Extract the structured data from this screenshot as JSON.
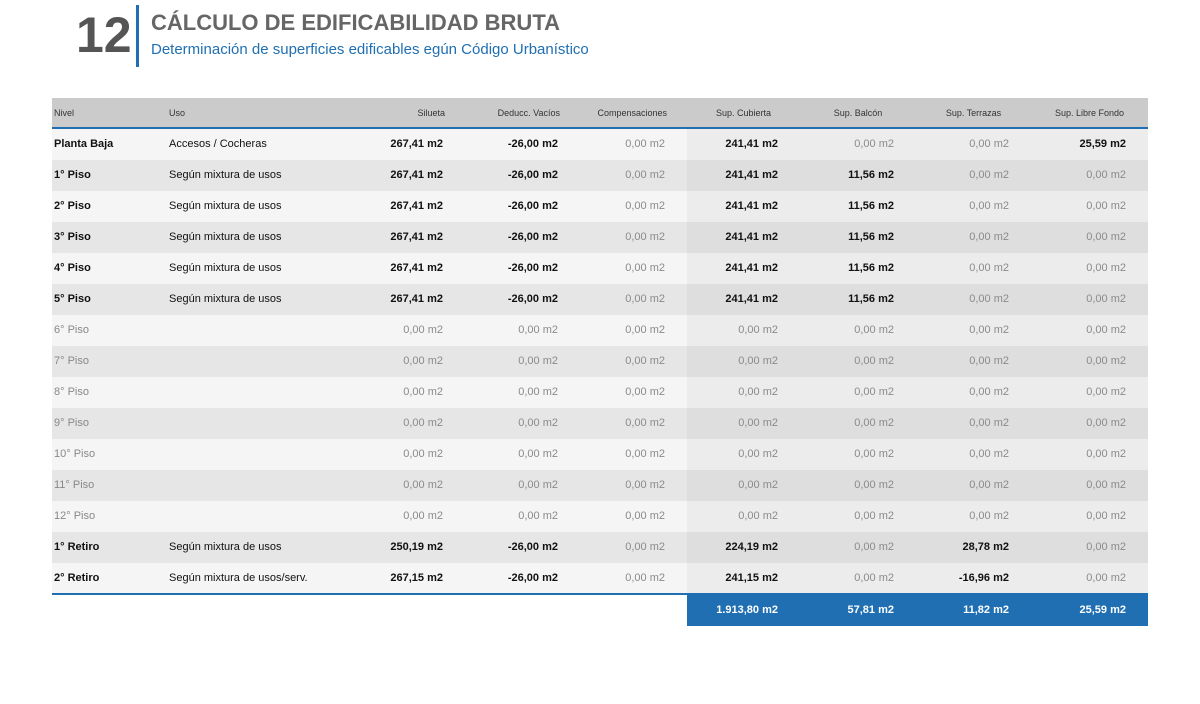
{
  "header": {
    "number": "12",
    "title": "CÁLCULO DE EDIFICABILIDAD BRUTA",
    "subtitle": "Determinación de superficies edificables egún Código Urbanístico"
  },
  "table": {
    "columns": [
      "Nivel",
      "Uso",
      "Silueta",
      "Deducc. Vacíos",
      "Compensaciones",
      "Sup. Cubierta",
      "Sup. Balcón",
      "Sup. Terrazas",
      "Sup. Libre Fondo"
    ],
    "rows": [
      [
        "Planta Baja",
        "Accesos / Cocheras",
        "267,41 m2",
        "-26,00 m2",
        "0,00 m2",
        "241,41 m2",
        "0,00 m2",
        "0,00 m2",
        "25,59 m2"
      ],
      [
        "1° Piso",
        "Según mixtura de usos",
        "267,41 m2",
        "-26,00 m2",
        "0,00 m2",
        "241,41 m2",
        "11,56 m2",
        "0,00 m2",
        "0,00 m2"
      ],
      [
        "2° Piso",
        "Según mixtura de usos",
        "267,41 m2",
        "-26,00 m2",
        "0,00 m2",
        "241,41 m2",
        "11,56 m2",
        "0,00 m2",
        "0,00 m2"
      ],
      [
        "3° Piso",
        "Según mixtura de usos",
        "267,41 m2",
        "-26,00 m2",
        "0,00 m2",
        "241,41 m2",
        "11,56 m2",
        "0,00 m2",
        "0,00 m2"
      ],
      [
        "4° Piso",
        "Según mixtura de usos",
        "267,41 m2",
        "-26,00 m2",
        "0,00 m2",
        "241,41 m2",
        "11,56 m2",
        "0,00 m2",
        "0,00 m2"
      ],
      [
        "5° Piso",
        "Según mixtura de usos",
        "267,41 m2",
        "-26,00 m2",
        "0,00 m2",
        "241,41 m2",
        "11,56 m2",
        "0,00 m2",
        "0,00 m2"
      ],
      [
        "6° Piso",
        null,
        "0,00 m2",
        "0,00 m2",
        "0,00 m2",
        "0,00 m2",
        "0,00 m2",
        "0,00 m2",
        "0,00 m2"
      ],
      [
        "7° Piso",
        null,
        "0,00 m2",
        "0,00 m2",
        "0,00 m2",
        "0,00 m2",
        "0,00 m2",
        "0,00 m2",
        "0,00 m2"
      ],
      [
        "8° Piso",
        null,
        "0,00 m2",
        "0,00 m2",
        "0,00 m2",
        "0,00 m2",
        "0,00 m2",
        "0,00 m2",
        "0,00 m2"
      ],
      [
        "9° Piso",
        null,
        "0,00 m2",
        "0,00 m2",
        "0,00 m2",
        "0,00 m2",
        "0,00 m2",
        "0,00 m2",
        "0,00 m2"
      ],
      [
        "10° Piso",
        null,
        "0,00 m2",
        "0,00 m2",
        "0,00 m2",
        "0,00 m2",
        "0,00 m2",
        "0,00 m2",
        "0,00 m2"
      ],
      [
        "11° Piso",
        null,
        "0,00 m2",
        "0,00 m2",
        "0,00 m2",
        "0,00 m2",
        "0,00 m2",
        "0,00 m2",
        "0,00 m2"
      ],
      [
        "12° Piso",
        null,
        "0,00 m2",
        "0,00 m2",
        "0,00 m2",
        "0,00 m2",
        "0,00 m2",
        "0,00 m2",
        "0,00 m2"
      ],
      [
        "1° Retiro",
        "Según mixtura de usos",
        "250,19 m2",
        "-26,00 m2",
        "0,00 m2",
        "224,19 m2",
        "0,00 m2",
        "28,78 m2",
        "0,00 m2"
      ],
      [
        "2° Retiro",
        "Según mixtura de usos/serv.",
        "267,15 m2",
        "-26,00 m2",
        "0,00 m2",
        "241,15 m2",
        "0,00 m2",
        "-16,96 m2",
        "0,00 m2"
      ]
    ],
    "totals": [
      "1.913,80 m2",
      "57,81 m2",
      "11,82 m2",
      "25,59 m2"
    ]
  }
}
